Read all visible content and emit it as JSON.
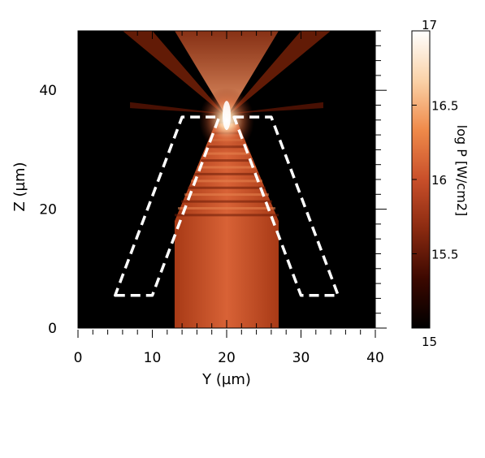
{
  "chart_data": {
    "type": "heatmap",
    "xlabel": "Y (µm)",
    "ylabel": "Z (µm)",
    "xlim": [
      0,
      40
    ],
    "ylim": [
      0,
      50
    ],
    "x_ticks": [
      0,
      10,
      20,
      30,
      40
    ],
    "y_ticks": [
      0,
      20,
      40
    ],
    "colorbar": {
      "label": "log P [W/cm2]",
      "range": [
        15,
        17
      ],
      "ticks": [
        15,
        15.5,
        16,
        16.5,
        17
      ],
      "colormap": [
        "#000000",
        "#3c0800",
        "#8a2a10",
        "#c94f2a",
        "#ef8a4a",
        "#fad2a8",
        "#ffffff"
      ]
    },
    "overlay_outlines": [
      {
        "name": "left-structure",
        "vertices_um": [
          [
            5,
            5.5
          ],
          [
            10,
            5.5
          ],
          [
            19,
            35.5
          ],
          [
            14,
            35.5
          ]
        ]
      },
      {
        "name": "right-structure",
        "vertices_um": [
          [
            21,
            35.5
          ],
          [
            26,
            35.5
          ],
          [
            35,
            5.5
          ],
          [
            30,
            5.5
          ]
        ]
      }
    ],
    "field_features": {
      "input_beam_y_range": [
        13,
        27
      ],
      "focus_point": [
        20,
        35.5
      ],
      "background_level": 15,
      "beam_level": 15.9,
      "focus_level": 17
    }
  }
}
